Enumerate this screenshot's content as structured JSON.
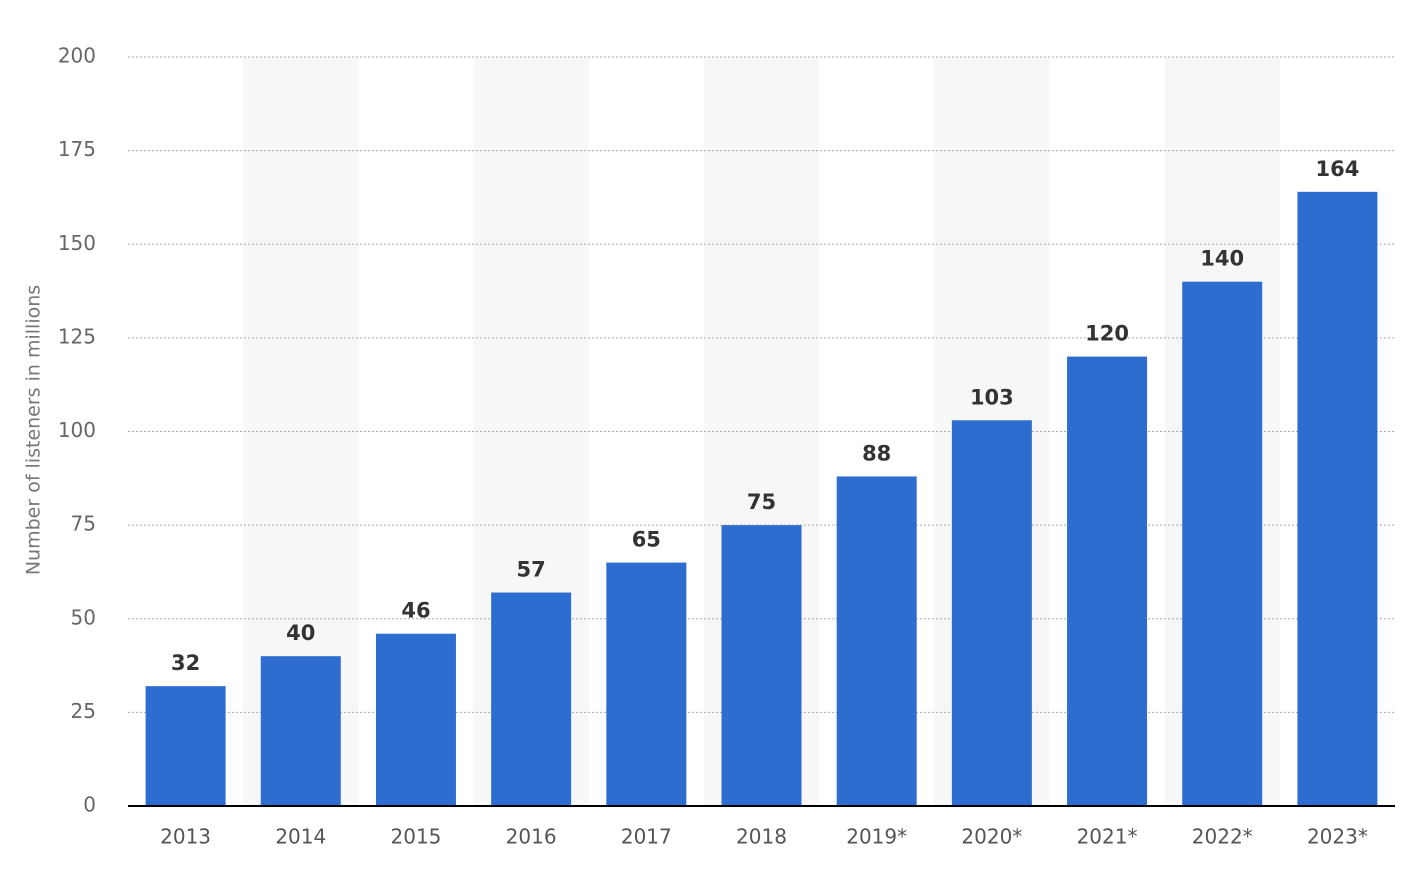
{
  "chart_data": {
    "type": "bar",
    "y_label": "Number of listeners in millions",
    "categories": [
      "2013",
      "2014",
      "2015",
      "2016",
      "2017",
      "2018",
      "2019*",
      "2020*",
      "2021*",
      "2022*",
      "2023*"
    ],
    "values": [
      32,
      40,
      46,
      57,
      65,
      75,
      88,
      103,
      120,
      140,
      164
    ],
    "color": "#2d6dcf",
    "ylim": [
      0,
      200
    ],
    "yticks": [
      0,
      25,
      50,
      75,
      100,
      125,
      150,
      175,
      200
    ],
    "grid": true
  }
}
